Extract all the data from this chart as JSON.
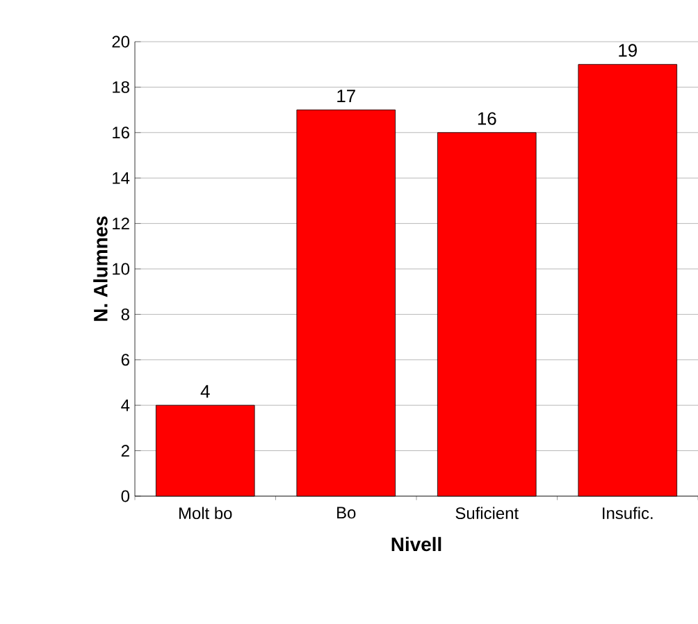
{
  "chart_data": {
    "type": "bar",
    "xlabel": "Nivell",
    "ylabel": "N. Alumnes",
    "categories": [
      "Molt bo",
      "Bo",
      "Suficient",
      "Insufic."
    ],
    "values": [
      4,
      17,
      16,
      19
    ],
    "color": "#ff0000",
    "ylim": [
      0,
      20
    ],
    "yticks": [
      0,
      2,
      4,
      6,
      8,
      10,
      12,
      14,
      16,
      18,
      20
    ],
    "grid": "y",
    "data_labels": true
  }
}
